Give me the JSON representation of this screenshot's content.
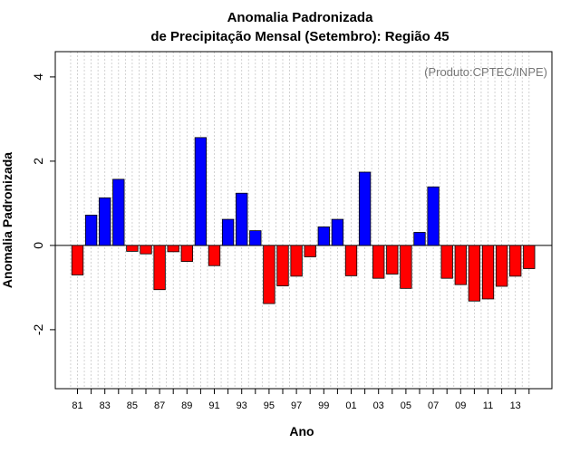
{
  "chart_data": {
    "type": "bar",
    "title": "Anomalia Padronizada",
    "subtitle": "de Precipitação Mensal (Setembro): Região 45",
    "xlabel": "Ano",
    "ylabel": "Anomalia Padronizada",
    "source_note": "(Produto:CPTEC/INPE)",
    "ylim": [
      -3.4,
      4.6
    ],
    "yticks": [
      -2,
      0,
      2,
      4
    ],
    "ytick_labels": [
      "-2",
      "0",
      "2",
      "4"
    ],
    "grid": "vertical dotted",
    "categories": [
      "81",
      "82",
      "83",
      "84",
      "85",
      "86",
      "87",
      "88",
      "89",
      "90",
      "91",
      "92",
      "93",
      "94",
      "95",
      "96",
      "97",
      "98",
      "99",
      "00",
      "01",
      "02",
      "03",
      "04",
      "05",
      "06",
      "07",
      "08",
      "09",
      "10",
      "11",
      "12",
      "13",
      "14"
    ],
    "xtick_labels": [
      "81",
      "83",
      "85",
      "87",
      "89",
      "91",
      "93",
      "95",
      "97",
      "99",
      "01",
      "03",
      "05",
      "07",
      "09",
      "11",
      "13"
    ],
    "values": [
      -0.7,
      0.72,
      1.13,
      1.57,
      -0.14,
      -0.2,
      -1.05,
      -0.15,
      -0.38,
      2.56,
      -0.48,
      0.62,
      1.24,
      0.35,
      -1.38,
      -0.96,
      -0.73,
      -0.27,
      0.44,
      0.62,
      -0.72,
      1.74,
      -0.78,
      -0.68,
      -1.02,
      0.31,
      1.39,
      -0.78,
      -0.93,
      -1.32,
      -1.27,
      -0.97,
      -0.73,
      -0.55
    ],
    "colors": {
      "positive": "#0000ff",
      "negative": "#ff0000"
    }
  }
}
